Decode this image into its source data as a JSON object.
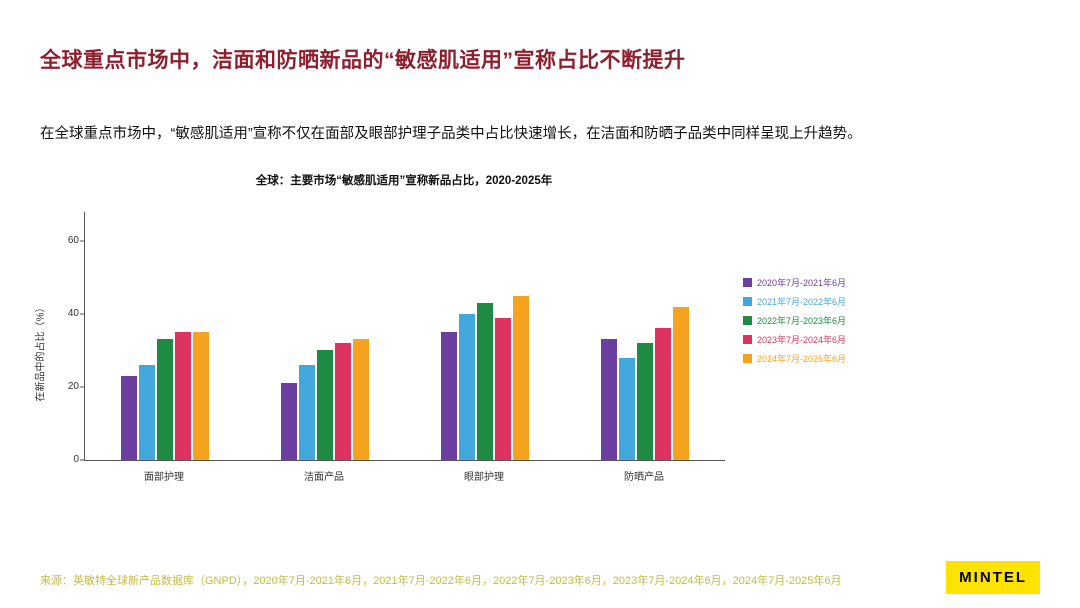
{
  "slide": {
    "title": "全球重点市场中，洁面和防晒新品的“敏感肌适用”宣称占比不断提升",
    "body": "在全球重点市场中，“敏感肌适用”宣称不仅在面部及眼部护理子品类中占比快速增长，在洁面和防晒子品类中同样呈现上升趋势。",
    "source": "来源：英敏特全球新产品数据库（GNPD），2020年7月-2021年6月，2021年7月-2022年6月，2022年7月-2023年6月，2023年7月-2024年6月，2024年7月-2025年6月",
    "logo": "MINTEL"
  },
  "chart_data": {
    "type": "bar",
    "title": "全球：主要市场“敏感肌适用”宣称新品占比，2020-2025年",
    "ylabel": "在新品中的占比（%）",
    "xlabel": "",
    "ylim": [
      0,
      68
    ],
    "yticks": [
      0,
      20,
      40,
      60
    ],
    "grid": false,
    "legend_position": "right",
    "categories": [
      "面部护理",
      "洁面产品",
      "眼部护理",
      "防晒产品"
    ],
    "series": [
      {
        "name": "2020年7月-2021年6月",
        "color": "#6B3FA0",
        "values": [
          23,
          21,
          35,
          33
        ]
      },
      {
        "name": "2021年7月-2022年6月",
        "color": "#41A8DC",
        "values": [
          26,
          26,
          40,
          28
        ]
      },
      {
        "name": "2022年7月-2023年6月",
        "color": "#1E8A44",
        "values": [
          33,
          30,
          43,
          32
        ]
      },
      {
        "name": "2023年7月-2024年6月",
        "color": "#DE3360",
        "values": [
          35,
          32,
          39,
          36
        ]
      },
      {
        "name": "2024年7月-2025年6月",
        "color": "#F5A21E",
        "values": [
          35,
          33,
          45,
          42
        ]
      }
    ]
  }
}
